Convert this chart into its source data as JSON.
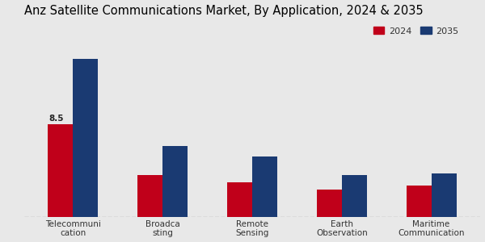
{
  "title": "Anz Satellite Communications Market, By Application, 2024 & 2035",
  "categories": [
    "Telecommuni\ncation",
    "Broadca\nsting",
    "Remote\nSensing",
    "Earth\nObservation",
    "Maritime\nCommunication"
  ],
  "values_2024": [
    8.5,
    3.8,
    3.2,
    2.5,
    2.9
  ],
  "values_2035": [
    14.5,
    6.5,
    5.5,
    3.8,
    4.0
  ],
  "color_2024": "#c0001a",
  "color_2035": "#1a3a72",
  "annotation_value": "8.5",
  "annotation_category_index": 0,
  "bar_width": 0.28,
  "background_color": "#e8e8e8",
  "legend_labels": [
    "2024",
    "2035"
  ],
  "title_fontsize": 10.5,
  "axis_fontsize": 8,
  "tick_fontsize": 7.5,
  "ylim": [
    0,
    18
  ],
  "figsize": [
    6.0,
    3.0
  ],
  "dpi": 100
}
